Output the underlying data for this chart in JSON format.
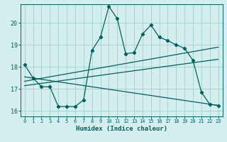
{
  "xlabel": "Humidex (Indice chaleur)",
  "bg_color": "#d4eeed",
  "grid_color": "#a8d4d0",
  "line_color": "#006060",
  "xlim": [
    -0.5,
    23.5
  ],
  "ylim": [
    15.75,
    20.85
  ],
  "yticks": [
    16,
    17,
    18,
    19,
    20
  ],
  "xticks": [
    0,
    1,
    2,
    3,
    4,
    5,
    6,
    7,
    8,
    9,
    10,
    11,
    12,
    13,
    14,
    15,
    16,
    17,
    18,
    19,
    20,
    21,
    22,
    23
  ],
  "line1_x": [
    0,
    1,
    2,
    3,
    4,
    5,
    6,
    7,
    8,
    9,
    10,
    11,
    12,
    13,
    14,
    15,
    16,
    17,
    18,
    19,
    20,
    21,
    22,
    23
  ],
  "line1_y": [
    18.1,
    17.5,
    17.1,
    17.1,
    16.2,
    16.2,
    16.2,
    16.5,
    18.75,
    19.35,
    20.75,
    20.2,
    18.6,
    18.65,
    19.5,
    19.9,
    19.35,
    19.2,
    19.0,
    18.85,
    18.3,
    16.85,
    16.3,
    16.25
  ],
  "line2_x": [
    0,
    23
  ],
  "line2_y": [
    17.15,
    18.35
  ],
  "line3_x": [
    0,
    23
  ],
  "line3_y": [
    17.35,
    18.9
  ],
  "line4_x": [
    0,
    23
  ],
  "line4_y": [
    17.55,
    16.25
  ]
}
